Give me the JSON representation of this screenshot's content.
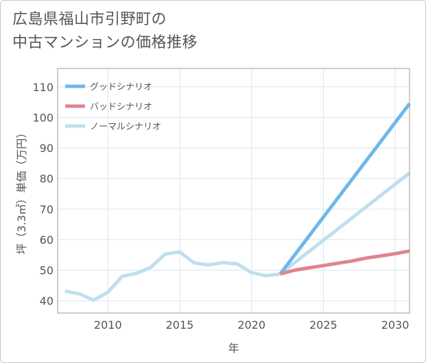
{
  "title_line1": "広島県福山市引野町の",
  "title_line2": "中古マンションの価格推移",
  "chart_data": {
    "type": "line",
    "title": "広島県福山市引野町の中古マンションの価格推移",
    "xlabel": "年",
    "ylabel": "坪（3.3㎡）単価（万円）",
    "xlim": [
      2006.5,
      2031
    ],
    "ylim": [
      36,
      116
    ],
    "xticks": [
      2010,
      2015,
      2020,
      2025,
      2030
    ],
    "yticks": [
      40,
      50,
      60,
      70,
      80,
      90,
      100,
      110
    ],
    "grid": true,
    "legend_position": "top-left",
    "series": [
      {
        "name": "グッドシナリオ",
        "color": "#6cb8ea",
        "x": [
          2022,
          2031
        ],
        "y": [
          48.8,
          104.5
        ]
      },
      {
        "name": "バッドシナリオ",
        "color": "#e0838f",
        "x": [
          2022,
          2023,
          2024,
          2025,
          2026,
          2027,
          2028,
          2029,
          2030,
          2031
        ],
        "y": [
          48.8,
          50.0,
          50.8,
          51.5,
          52.3,
          53.0,
          54.0,
          54.7,
          55.4,
          56.3
        ]
      },
      {
        "name": "ノーマルシナリオ",
        "color": "#bfdfee",
        "x": [
          2007,
          2008,
          2009,
          2010,
          2011,
          2012,
          2013,
          2014,
          2015,
          2016,
          2017,
          2018,
          2019,
          2020,
          2021,
          2022,
          2031
        ],
        "y": [
          43.2,
          42.3,
          40.2,
          42.8,
          48.0,
          49.0,
          51.0,
          55.3,
          56.0,
          52.4,
          51.7,
          52.5,
          52.1,
          49.2,
          48.2,
          48.8,
          81.8
        ]
      }
    ]
  }
}
